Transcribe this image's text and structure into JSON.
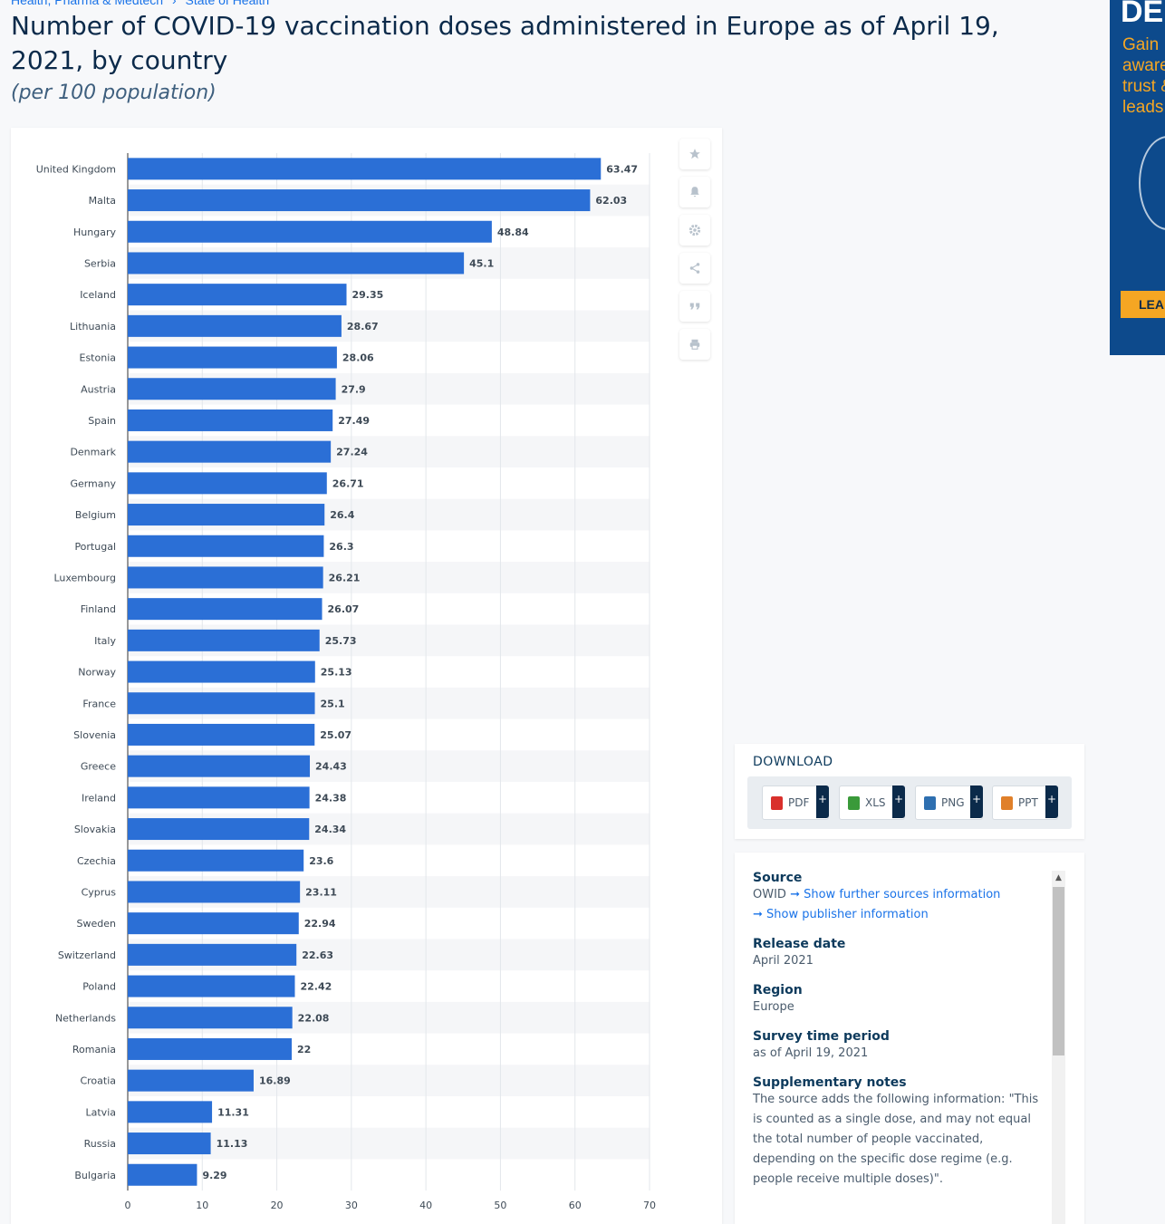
{
  "breadcrumb": [
    "Health, Pharma & Medtech",
    "›",
    "State of Health"
  ],
  "title": "Number of COVID-19 vaccination doses administered in Europe as of April 19, 2021, by country",
  "subtitle": "(per 100 population)",
  "chart_data": {
    "type": "bar",
    "orientation": "horizontal",
    "title": "Number of COVID-19 vaccination doses administered in Europe as of April 19, 2021, by country",
    "subtitle": "(per 100 population)",
    "categories": [
      "United Kingdom",
      "Malta",
      "Hungary",
      "Serbia",
      "Iceland",
      "Lithuania",
      "Estonia",
      "Austria",
      "Spain",
      "Denmark",
      "Germany",
      "Belgium",
      "Portugal",
      "Luxembourg",
      "Finland",
      "Italy",
      "Norway",
      "France",
      "Slovenia",
      "Greece",
      "Ireland",
      "Slovakia",
      "Czechia",
      "Cyprus",
      "Sweden",
      "Switzerland",
      "Poland",
      "Netherlands",
      "Romania",
      "Croatia",
      "Latvia",
      "Russia",
      "Bulgaria"
    ],
    "values": [
      63.47,
      62.03,
      48.84,
      45.1,
      29.35,
      28.67,
      28.06,
      27.9,
      27.49,
      27.24,
      26.71,
      26.4,
      26.3,
      26.21,
      26.07,
      25.73,
      25.13,
      25.1,
      25.07,
      24.43,
      24.38,
      24.34,
      23.6,
      23.11,
      22.94,
      22.63,
      22.42,
      22.08,
      22,
      16.89,
      11.31,
      11.13,
      9.29
    ],
    "value_labels": [
      "63.47",
      "62.03",
      "48.84",
      "45.1",
      "29.35",
      "28.67",
      "28.06",
      "27.9",
      "27.49",
      "27.24",
      "26.71",
      "26.4",
      "26.3",
      "26.21",
      "26.07",
      "25.73",
      "25.13",
      "25.1",
      "25.07",
      "24.43",
      "24.38",
      "24.34",
      "23.6",
      "23.11",
      "22.94",
      "22.63",
      "22.42",
      "22.08",
      "22",
      "16.89",
      "11.31",
      "11.13",
      "9.29"
    ],
    "xticks": [
      0,
      10,
      20,
      30,
      40,
      50,
      60,
      70
    ],
    "xlim": [
      0,
      70
    ],
    "xlabel": "",
    "ylabel": "",
    "grid": true,
    "bar_color": "#2b6fd6"
  },
  "tools": [
    "star-icon",
    "bell-icon",
    "gear-icon",
    "share-icon",
    "quote-icon",
    "print-icon"
  ],
  "download": {
    "title": "DOWNLOAD",
    "buttons": [
      {
        "label": "PDF",
        "plus": "+",
        "color": "#d9302c"
      },
      {
        "label": "XLS",
        "plus": "+",
        "color": "#3a9a3a"
      },
      {
        "label": "PNG",
        "plus": "+",
        "color": "#2e6fb0"
      },
      {
        "label": "PPT",
        "plus": "+",
        "color": "#e0802a"
      }
    ]
  },
  "info": {
    "source_label": "Source",
    "source_value": "OWID",
    "source_link": "➞ Show further sources information",
    "publisher_link": "➞ Show publisher information",
    "release_label": "Release date",
    "release_value": "April 2021",
    "region_label": "Region",
    "region_value": "Europe",
    "survey_label": "Survey time period",
    "survey_value": "as of April 19, 2021",
    "notes_label": "Supplementary notes",
    "notes_value": "The source adds the following information: \"This is counted as a single dose, and may not equal the total number of people vaccinated, depending on the specific dose regime (e.g. people receive multiple doses)\"."
  },
  "ad": {
    "heading": "DE",
    "text": "Gain awareness, trust & leads",
    "button": "LEA"
  }
}
